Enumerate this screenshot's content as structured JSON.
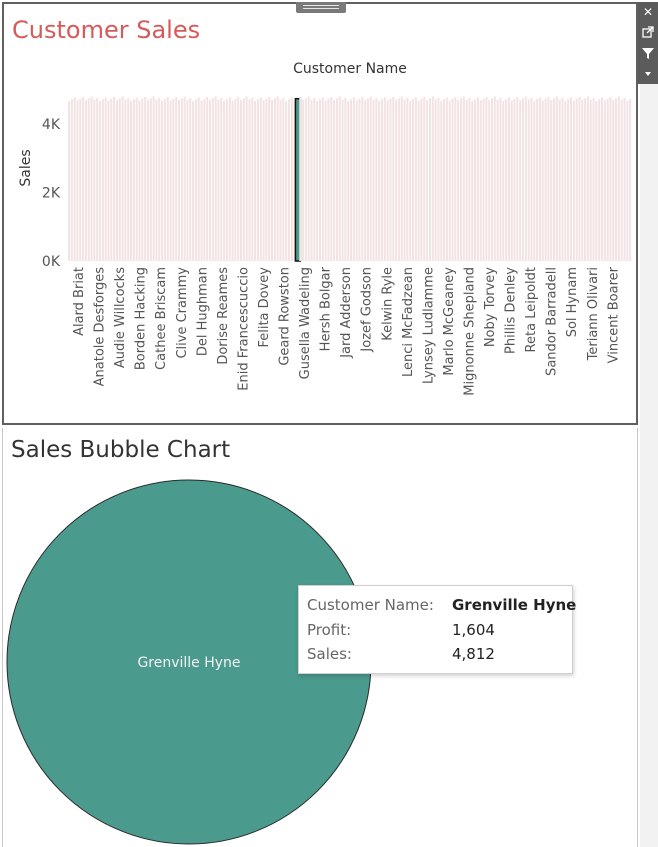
{
  "top_title": "Customer Sales",
  "bottom_title": "Sales Bubble Chart",
  "toolbar": {
    "close_icon": "close-icon",
    "popout_icon": "popout-icon",
    "filter_icon": "filter-icon",
    "more_icon": "dropdown-icon"
  },
  "chart_data": [
    {
      "type": "bar",
      "title": "Customer Name",
      "xlabel": "",
      "ylabel": "Sales",
      "ylim": [
        0,
        5000
      ],
      "yticks": [
        {
          "value": 0,
          "label": "0K"
        },
        {
          "value": 2000,
          "label": "2K"
        },
        {
          "value": 4000,
          "label": "4K"
        }
      ],
      "bar_count": 200,
      "bar_value_approx": 4812,
      "highlighted_category": "Grenville Hyne",
      "highlight_color": "#4a9a8e",
      "bar_color": "#f3e3e3",
      "grid": false,
      "categories_shown": [
        "Alard Briat",
        "Anatole Desforges",
        "Audie Willcocks",
        "Borden Hacking",
        "Cathee Briscam",
        "Clive Crammy",
        "Del Hughman",
        "Dorise Reames",
        "Enid Francescuccio",
        "Felita Dovey",
        "Geard Rowston",
        "Gusella Wadeling",
        "Hersh Bolgar",
        "Jard Adderson",
        "Jozef Godson",
        "Kelwin Ryle",
        "Lenci McFadzean",
        "Lynsey Ludlamme",
        "Marlo McGeaney",
        "Mignonne Shepland",
        "Noby Torvey",
        "Phillis Denley",
        "Reta Leipoldt",
        "Sandor Barradell",
        "Sol Hynam",
        "Teriann Olivari",
        "Vincent Boarer"
      ]
    },
    {
      "type": "bubble",
      "title": "",
      "bubbles": [
        {
          "label": "Grenville Hyne",
          "sales": 4812,
          "profit": 1604,
          "color": "#4a9a8e"
        }
      ]
    }
  ],
  "tooltip": {
    "rows": [
      {
        "label": "Customer Name:",
        "value": "Grenville Hyne"
      },
      {
        "label": "Profit:",
        "value": "1,604"
      },
      {
        "label": "Sales:",
        "value": "4,812"
      }
    ]
  }
}
